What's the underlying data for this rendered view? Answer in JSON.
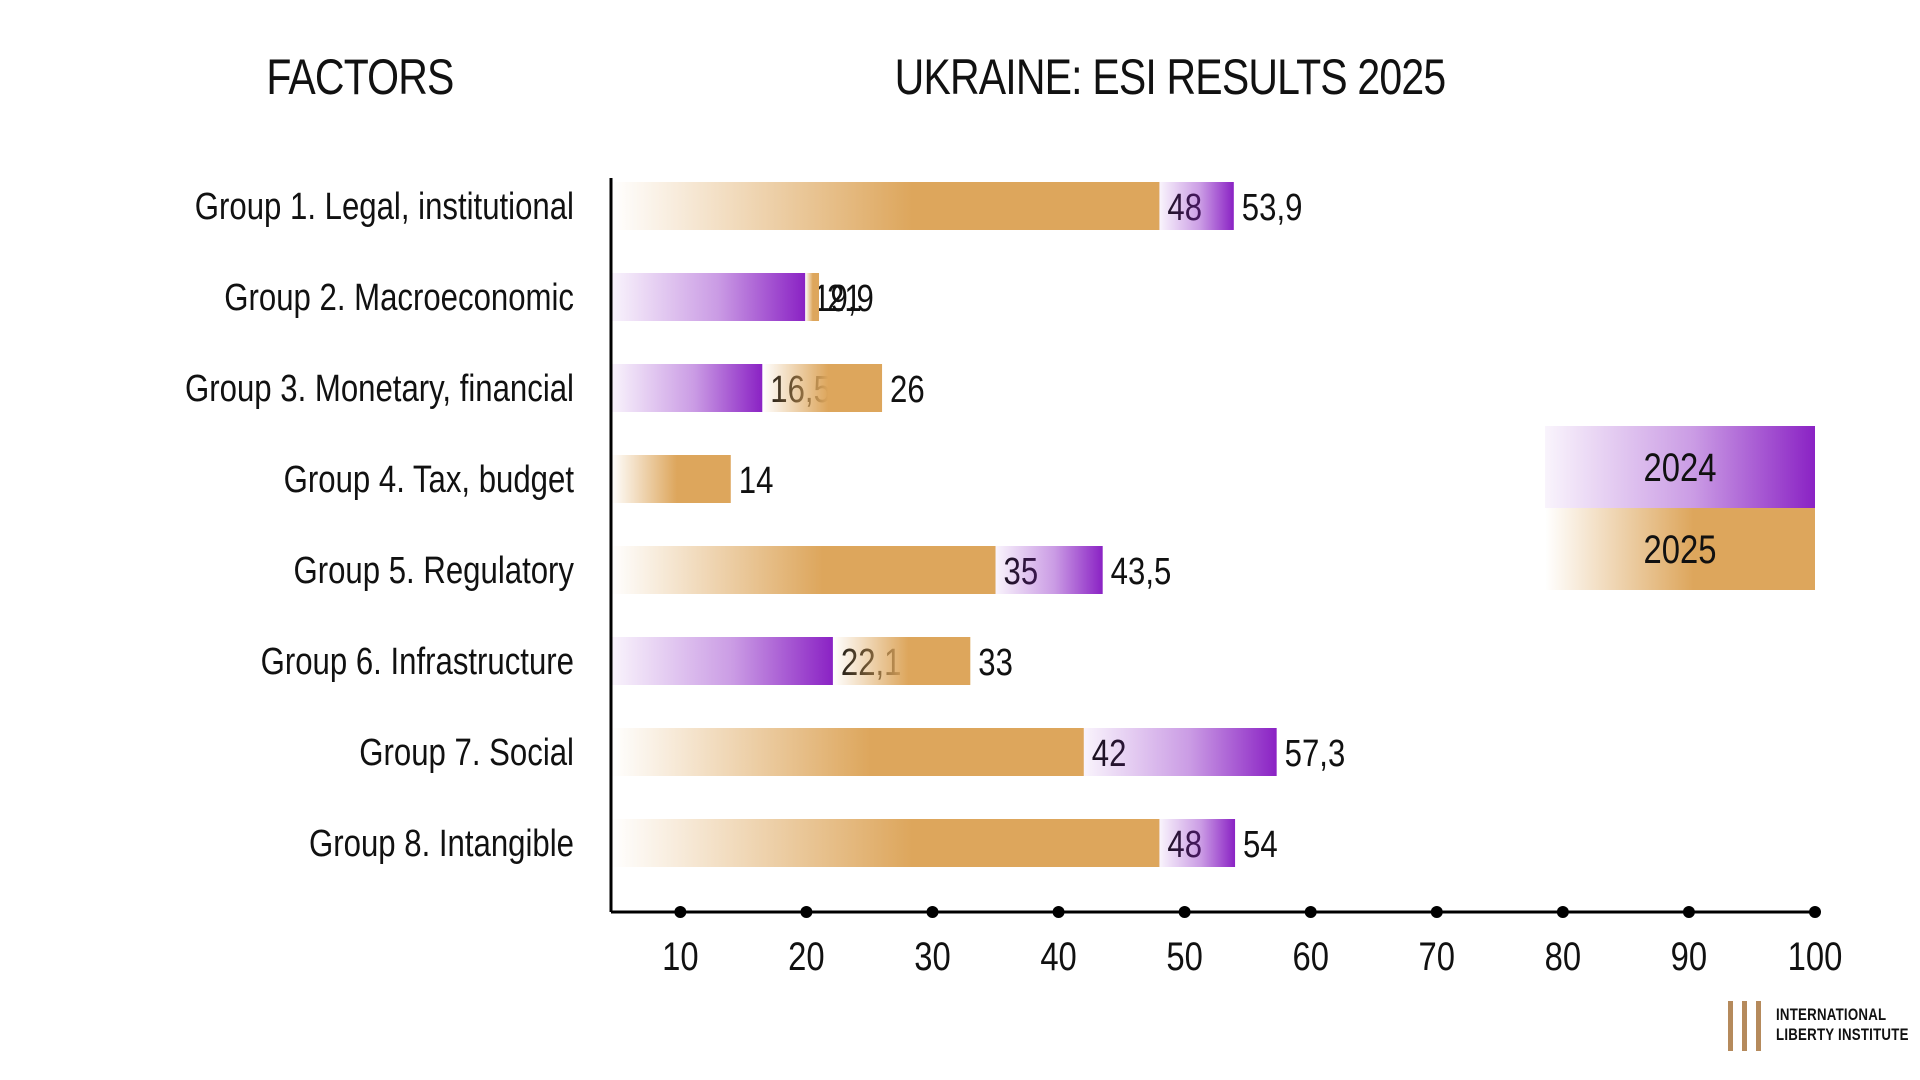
{
  "header": {
    "factors_title": "FACTORS",
    "chart_title": "UKRAINE: ESI RESULTS 2025"
  },
  "logo": {
    "line1": "INTERNATIONAL",
    "line2": "LIBERTY INSTITUTE"
  },
  "colors": {
    "series_2024": "#8a22c4",
    "series_2025": "#dda65c",
    "axis": "#000000"
  },
  "chart_data": {
    "type": "bar",
    "orientation": "horizontal",
    "title": "UKRAINE: ESI RESULTS 2025",
    "categories": [
      "Group 1. Legal, institutional",
      "Group 2. Macroeconomic",
      "Group 3. Monetary, financial",
      "Group 4. Tax, budget",
      "Group 5. Regulatory",
      "Group 6. Infrastructure",
      "Group 7. Social",
      "Group 8. Intangible"
    ],
    "series": [
      {
        "name": "2024",
        "values": [
          53.9,
          19.9,
          16.5,
          null,
          43.5,
          22.1,
          57.3,
          54
        ],
        "labels": [
          "53,9",
          "19,9",
          "16,5",
          "",
          "43,5",
          "22,1",
          "57,3",
          "54"
        ]
      },
      {
        "name": "2025",
        "values": [
          48,
          21,
          26,
          14,
          35,
          33,
          42,
          48
        ],
        "labels": [
          "48",
          "21",
          "26",
          "14",
          "35",
          "33",
          "42",
          "48"
        ]
      }
    ],
    "xticks": [
      "10",
      "20",
      "30",
      "40",
      "50",
      "60",
      "70",
      "80",
      "90",
      "100"
    ],
    "xlim": [
      4.5,
      100
    ],
    "legend": [
      "2024",
      "2025"
    ],
    "legend_position": "right"
  }
}
